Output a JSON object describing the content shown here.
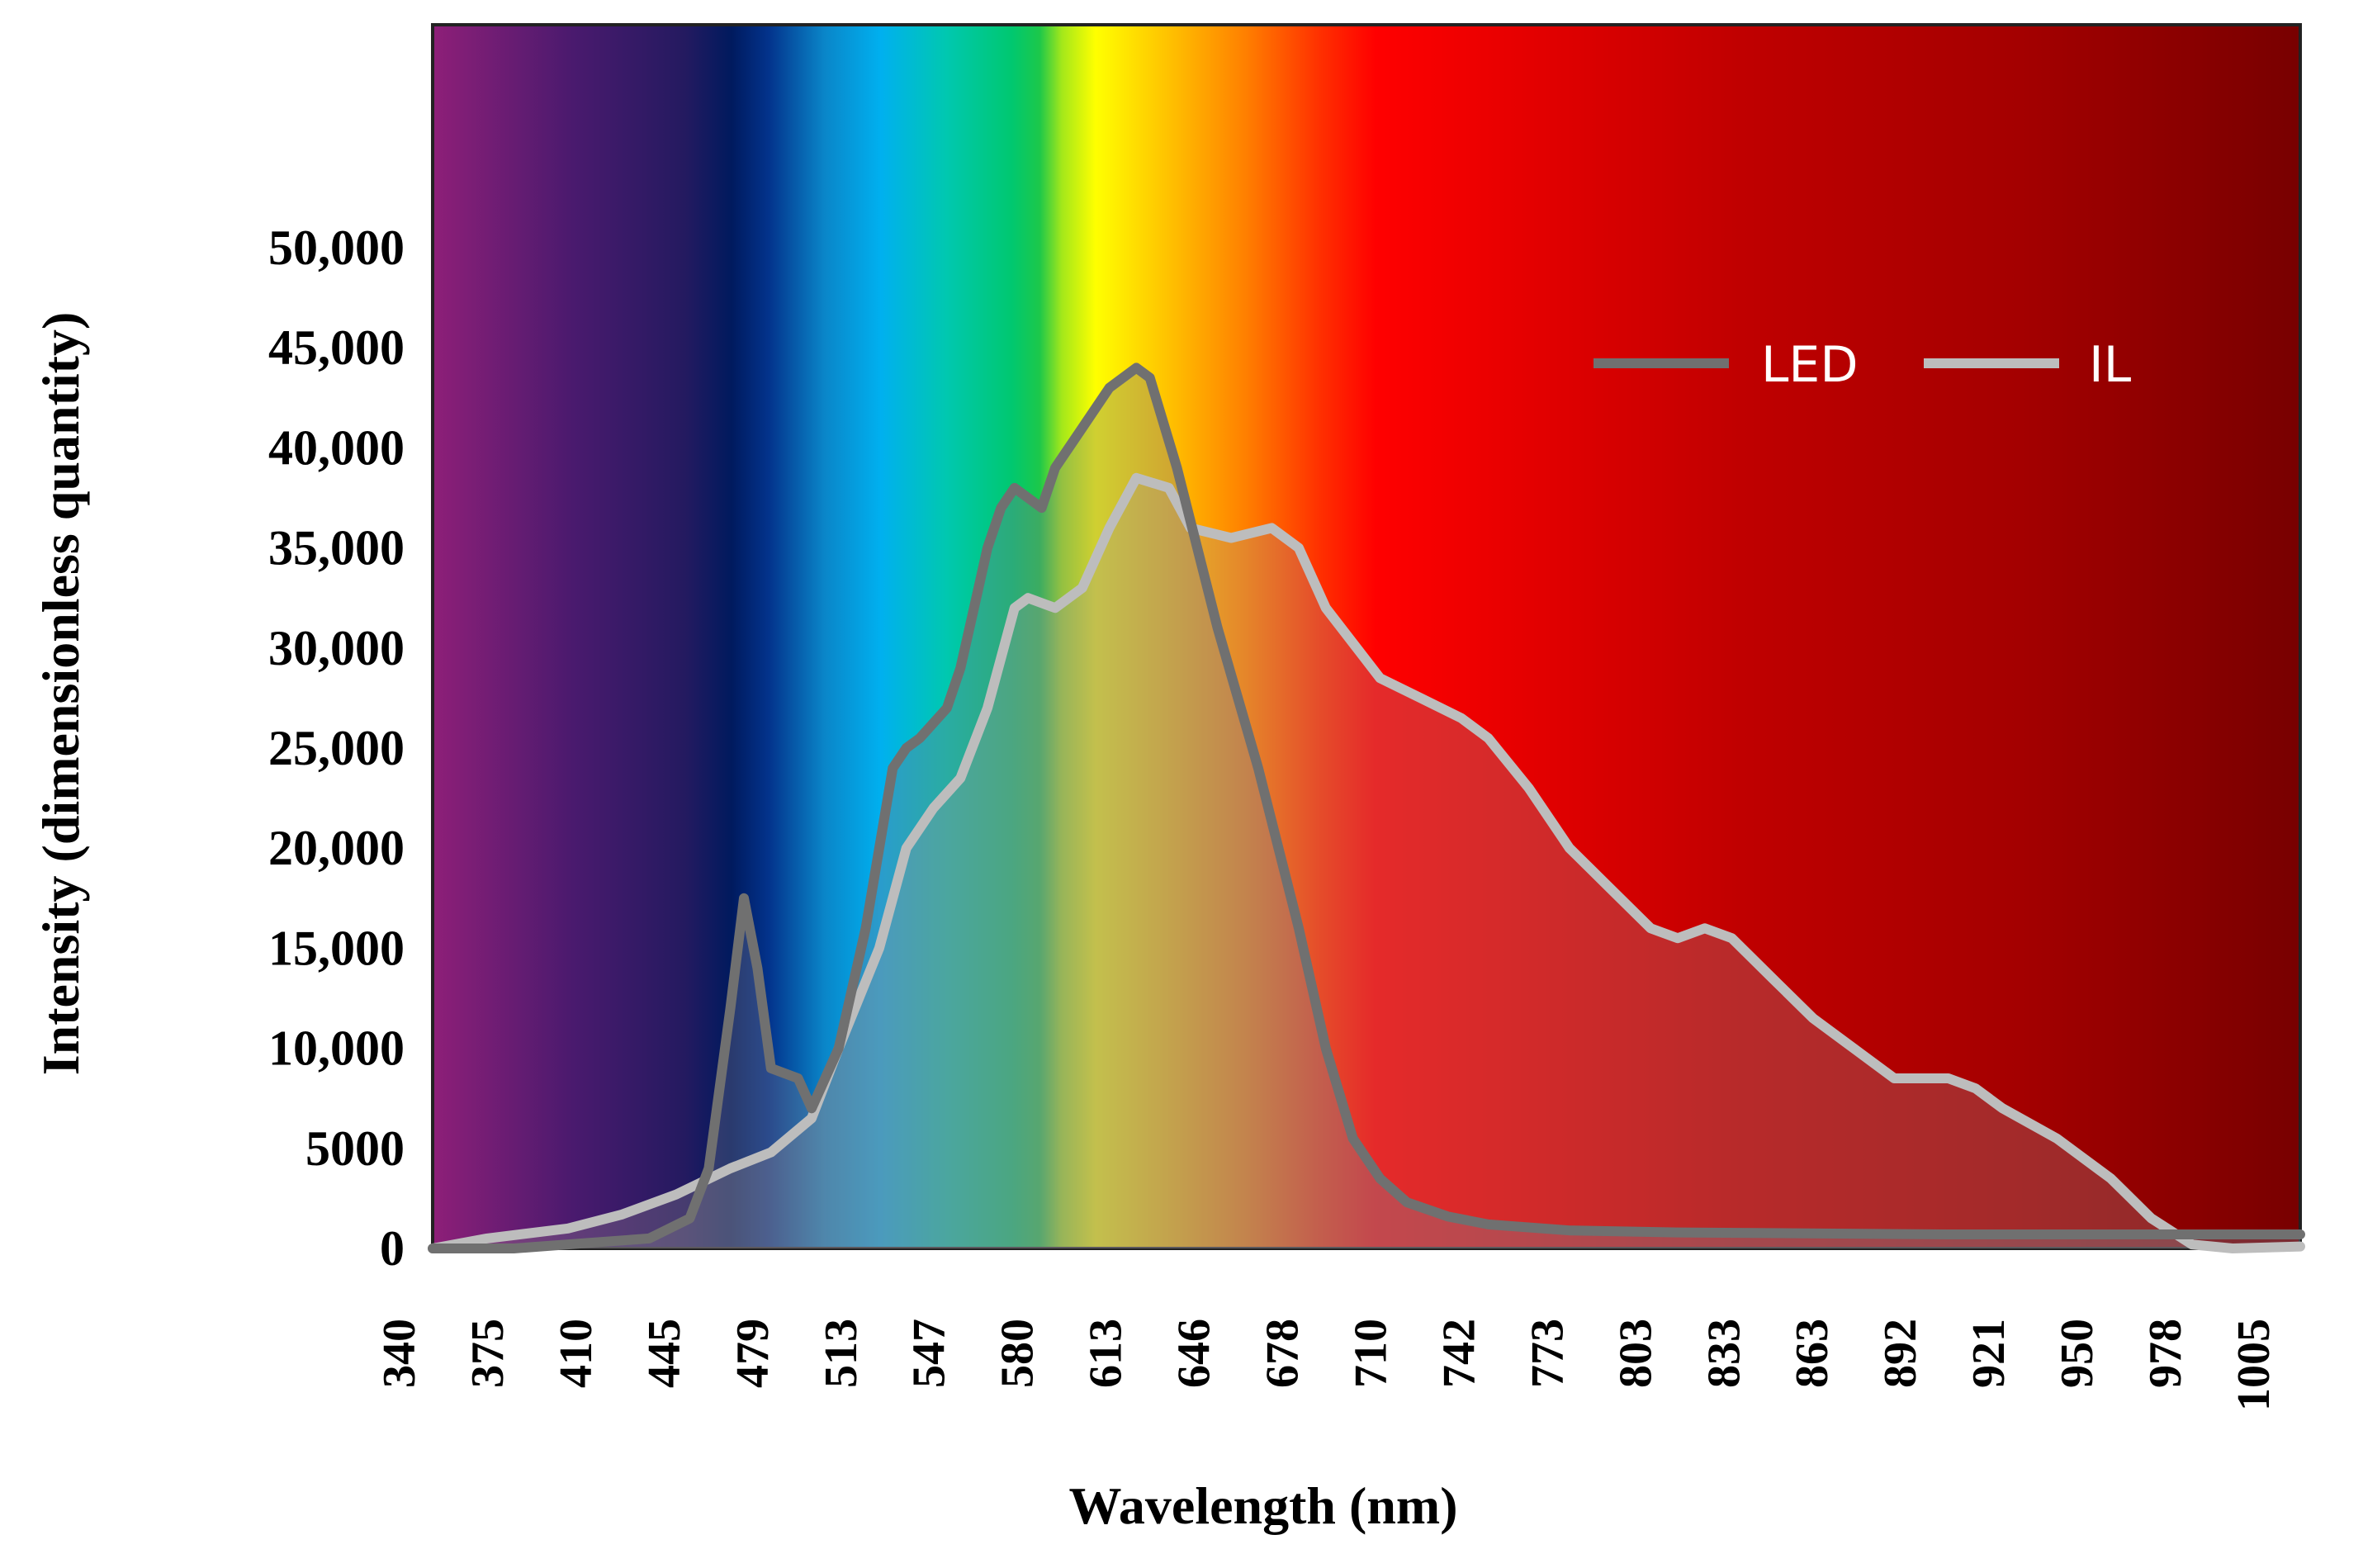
{
  "chart_data": {
    "type": "line",
    "title": "",
    "xlabel": "Wavelength (nm)",
    "ylabel": "Intensity (dimensionless quantity)",
    "xlim": [
      340,
      1030
    ],
    "ylim": [
      0,
      60000
    ],
    "x_tick_labels": [
      "340",
      "375",
      "410",
      "445",
      "479",
      "513",
      "547",
      "580",
      "613",
      "646",
      "678",
      "710",
      "742",
      "773",
      "803",
      "833",
      "863",
      "892",
      "921",
      "950",
      "978",
      "1005"
    ],
    "y_ticks": [
      0,
      5000,
      10000,
      15000,
      20000,
      25000,
      30000,
      35000,
      40000,
      45000,
      50000
    ],
    "y_tick_labels": [
      "0",
      "5000",
      "10,000",
      "15,000",
      "20,000",
      "25,000",
      "30,000",
      "35,000",
      "40,000",
      "45,000",
      "50,000"
    ],
    "background": "visible light spectrum gradient",
    "legend": {
      "position": "top-right",
      "text_color": "#ffffff"
    },
    "series": [
      {
        "name": "LED",
        "color": "#707070",
        "points": [
          [
            340,
            0
          ],
          [
            370,
            0
          ],
          [
            400,
            300
          ],
          [
            420,
            500
          ],
          [
            435,
            1500
          ],
          [
            442,
            4000
          ],
          [
            450,
            12000
          ],
          [
            455,
            17500
          ],
          [
            460,
            14000
          ],
          [
            465,
            9000
          ],
          [
            475,
            8500
          ],
          [
            480,
            7000
          ],
          [
            490,
            10000
          ],
          [
            500,
            16000
          ],
          [
            505,
            20000
          ],
          [
            510,
            24000
          ],
          [
            515,
            25000
          ],
          [
            520,
            25500
          ],
          [
            530,
            27000
          ],
          [
            535,
            29000
          ],
          [
            540,
            32000
          ],
          [
            545,
            35000
          ],
          [
            550,
            37000
          ],
          [
            555,
            38000
          ],
          [
            565,
            37000
          ],
          [
            570,
            39000
          ],
          [
            580,
            41000
          ],
          [
            590,
            43000
          ],
          [
            600,
            44000
          ],
          [
            605,
            43500
          ],
          [
            615,
            39000
          ],
          [
            630,
            31000
          ],
          [
            645,
            24000
          ],
          [
            660,
            16000
          ],
          [
            670,
            10000
          ],
          [
            680,
            5500
          ],
          [
            690,
            3500
          ],
          [
            700,
            2300
          ],
          [
            715,
            1600
          ],
          [
            730,
            1200
          ],
          [
            760,
            900
          ],
          [
            800,
            800
          ],
          [
            900,
            700
          ],
          [
            1000,
            700
          ],
          [
            1030,
            700
          ]
        ]
      },
      {
        "name": "IL",
        "color": "#bdbdbd",
        "points": [
          [
            340,
            0
          ],
          [
            360,
            500
          ],
          [
            390,
            1000
          ],
          [
            410,
            1700
          ],
          [
            430,
            2700
          ],
          [
            450,
            4000
          ],
          [
            465,
            4800
          ],
          [
            480,
            6500
          ],
          [
            490,
            10000
          ],
          [
            505,
            15000
          ],
          [
            515,
            20000
          ],
          [
            525,
            22000
          ],
          [
            535,
            23500
          ],
          [
            545,
            27000
          ],
          [
            555,
            32000
          ],
          [
            560,
            32500
          ],
          [
            570,
            32000
          ],
          [
            580,
            33000
          ],
          [
            590,
            36000
          ],
          [
            600,
            38500
          ],
          [
            612,
            38000
          ],
          [
            620,
            36000
          ],
          [
            635,
            35500
          ],
          [
            650,
            36000
          ],
          [
            660,
            35000
          ],
          [
            670,
            32000
          ],
          [
            690,
            28500
          ],
          [
            705,
            27500
          ],
          [
            720,
            26500
          ],
          [
            730,
            25500
          ],
          [
            745,
            23000
          ],
          [
            760,
            20000
          ],
          [
            775,
            18000
          ],
          [
            790,
            16000
          ],
          [
            800,
            15500
          ],
          [
            810,
            16000
          ],
          [
            820,
            15500
          ],
          [
            835,
            13500
          ],
          [
            850,
            11500
          ],
          [
            865,
            10000
          ],
          [
            880,
            8500
          ],
          [
            890,
            8500
          ],
          [
            900,
            8500
          ],
          [
            910,
            8000
          ],
          [
            920,
            7000
          ],
          [
            940,
            5500
          ],
          [
            960,
            3500
          ],
          [
            975,
            1500
          ],
          [
            990,
            200
          ],
          [
            1005,
            0
          ],
          [
            1030,
            100
          ]
        ]
      }
    ]
  }
}
